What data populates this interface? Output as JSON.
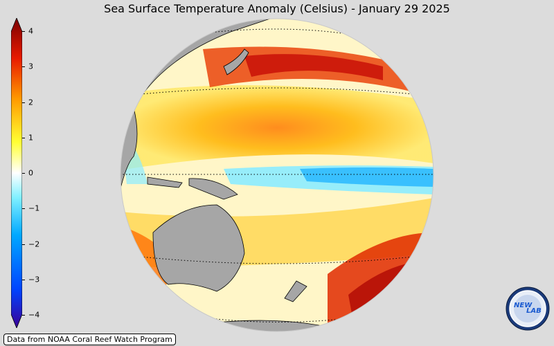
{
  "title": "Sea Surface Temperature Anomaly (Celsius) - January 29 2025",
  "colorbar": {
    "ticks": [
      "4",
      "3",
      "2",
      "1",
      "0",
      "−1",
      "−2",
      "−3",
      "−4"
    ],
    "min": -4,
    "max": 4,
    "colors": [
      "#3b0096",
      "#0044ff",
      "#00a8ff",
      "#7ff0ff",
      "#ffffff",
      "#ffff33",
      "#ff9900",
      "#e81a00",
      "#7a0000"
    ]
  },
  "credit": "Data from NOAA Coral Reef Watch Program",
  "logo": {
    "text_left": "NEW",
    "text_right": "LAB"
  }
}
